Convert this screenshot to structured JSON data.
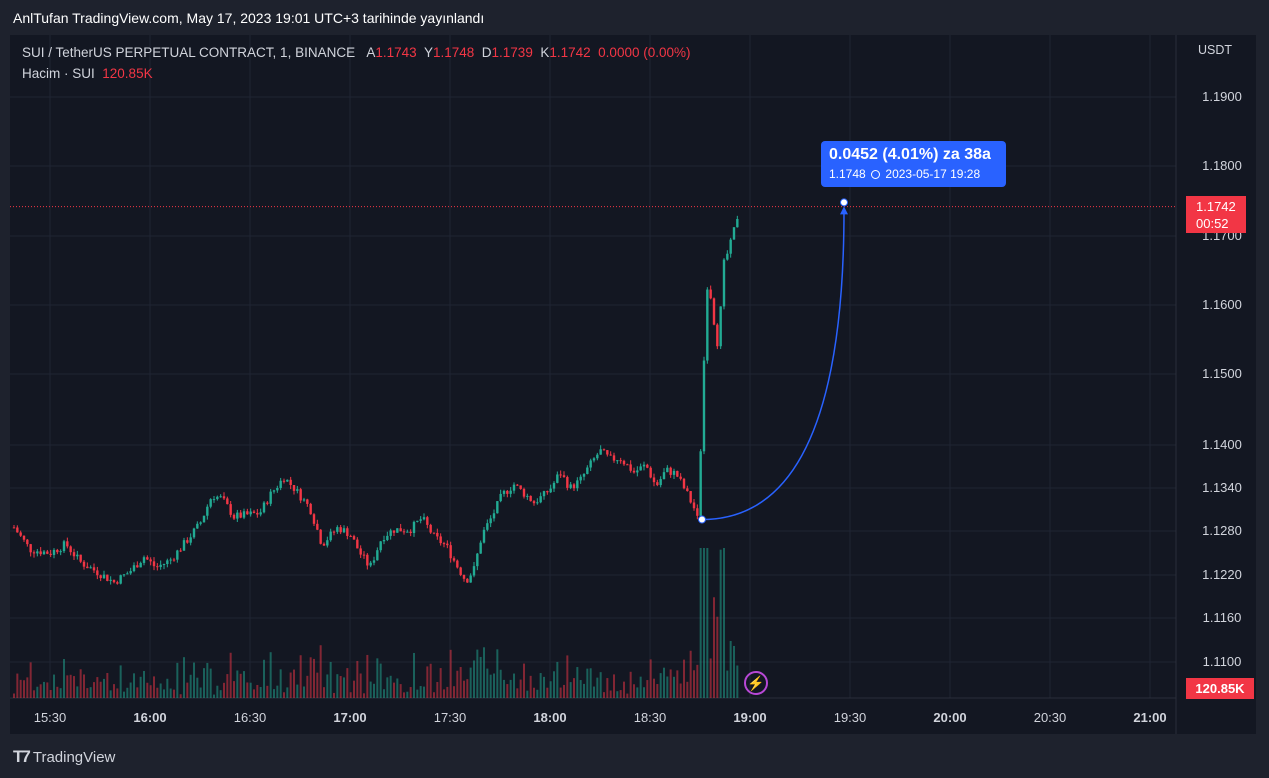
{
  "header": {
    "publish_note": "AnlTufan TradingView.com, May 17, 2023 19:01 UTC+3 tarihinde yayınlandı"
  },
  "legend": {
    "symbol": "SUI / TetherUS PERPETUAL CONTRACT, 1, BINANCE",
    "ohlc": [
      {
        "key": "A",
        "value": "1.1743"
      },
      {
        "key": "Y",
        "value": "1.1748"
      },
      {
        "key": "D",
        "value": "1.1739"
      },
      {
        "key": "K",
        "value": "1.1742"
      }
    ],
    "change": "0.0000 (0.00%)",
    "volume_label": "Hacim · SUI",
    "volume_value": "120.85K"
  },
  "price_axis": {
    "unit": "USDT",
    "current_price": "1.1742",
    "countdown": "00:52",
    "volume_badge": "120.85K"
  },
  "measure_tooltip": {
    "line1": "0.0452 (4.01%) za 38a",
    "price": "1.1748",
    "datetime": "2023-05-17  19:28"
  },
  "brand": {
    "name": "TradingView"
  },
  "colors": {
    "up": "#22ab94",
    "down": "#f23645",
    "accent": "#2962ff",
    "background": "#131722"
  },
  "chart_data": {
    "type": "candlestick",
    "timeframe": "1m",
    "y_ticks": [
      1.19,
      1.18,
      1.17,
      1.16,
      1.15,
      1.14,
      1.134,
      1.128,
      1.122,
      1.116,
      1.11
    ],
    "x_ticks": [
      {
        "label": "15:30",
        "t": 15.5,
        "bold": false
      },
      {
        "label": "16:00",
        "t": 16.0,
        "bold": true
      },
      {
        "label": "16:30",
        "t": 16.5,
        "bold": false
      },
      {
        "label": "17:00",
        "t": 17.0,
        "bold": true
      },
      {
        "label": "17:30",
        "t": 17.5,
        "bold": false
      },
      {
        "label": "18:00",
        "t": 18.0,
        "bold": true
      },
      {
        "label": "18:30",
        "t": 18.5,
        "bold": false
      },
      {
        "label": "19:00",
        "t": 19.0,
        "bold": true
      },
      {
        "label": "19:30",
        "t": 19.5,
        "bold": false
      },
      {
        "label": "20:00",
        "t": 20.0,
        "bold": true
      },
      {
        "label": "20:30",
        "t": 20.5,
        "bold": false
      },
      {
        "label": "21:00",
        "t": 21.0,
        "bold": true
      }
    ],
    "start_time": "15:19",
    "last_price": 1.1742,
    "path": [
      [
        15.32,
        1.1285
      ],
      [
        15.4,
        1.1255
      ],
      [
        15.5,
        1.125
      ],
      [
        15.58,
        1.1262
      ],
      [
        15.65,
        1.1238
      ],
      [
        15.75,
        1.1222
      ],
      [
        15.82,
        1.121
      ],
      [
        15.9,
        1.1225
      ],
      [
        15.97,
        1.1245
      ],
      [
        16.03,
        1.123
      ],
      [
        16.1,
        1.124
      ],
      [
        16.17,
        1.1262
      ],
      [
        16.25,
        1.129
      ],
      [
        16.31,
        1.133
      ],
      [
        16.36,
        1.1325
      ],
      [
        16.42,
        1.13
      ],
      [
        16.47,
        1.1302
      ],
      [
        16.55,
        1.1305
      ],
      [
        16.6,
        1.133
      ],
      [
        16.67,
        1.1355
      ],
      [
        16.72,
        1.134
      ],
      [
        16.8,
        1.1312
      ],
      [
        16.86,
        1.1262
      ],
      [
        16.94,
        1.1285
      ],
      [
        17.0,
        1.1276
      ],
      [
        17.05,
        1.125
      ],
      [
        17.1,
        1.123
      ],
      [
        17.16,
        1.1272
      ],
      [
        17.22,
        1.1282
      ],
      [
        17.3,
        1.1282
      ],
      [
        17.36,
        1.1298
      ],
      [
        17.42,
        1.1272
      ],
      [
        17.48,
        1.126
      ],
      [
        17.53,
        1.1235
      ],
      [
        17.58,
        1.1212
      ],
      [
        17.62,
        1.1228
      ],
      [
        17.66,
        1.1275
      ],
      [
        17.71,
        1.13
      ],
      [
        17.76,
        1.133
      ],
      [
        17.82,
        1.1345
      ],
      [
        17.86,
        1.1335
      ],
      [
        17.92,
        1.132
      ],
      [
        17.97,
        1.133
      ],
      [
        18.01,
        1.1342
      ],
      [
        18.05,
        1.1362
      ],
      [
        18.1,
        1.134
      ],
      [
        18.15,
        1.135
      ],
      [
        18.2,
        1.1372
      ],
      [
        18.25,
        1.1392
      ],
      [
        18.3,
        1.138
      ],
      [
        18.35,
        1.1382
      ],
      [
        18.42,
        1.1362
      ],
      [
        18.48,
        1.1372
      ],
      [
        18.53,
        1.1342
      ],
      [
        18.58,
        1.1365
      ],
      [
        18.63,
        1.136
      ],
      [
        18.68,
        1.1335
      ],
      [
        18.72,
        1.1312
      ],
      [
        18.74,
        1.1294
      ],
      [
        18.77,
        1.152
      ],
      [
        18.79,
        1.165
      ],
      [
        18.81,
        1.1595
      ],
      [
        18.84,
        1.154
      ],
      [
        18.87,
        1.166
      ],
      [
        18.9,
        1.1685
      ],
      [
        18.93,
        1.172
      ],
      [
        18.95,
        1.1742
      ]
    ],
    "volume_note": "volume spike around 18:45–18:55",
    "measure": {
      "from_time": 18.76,
      "from_price": 1.1296,
      "to_time": 19.47,
      "to_price": 1.1748
    }
  }
}
